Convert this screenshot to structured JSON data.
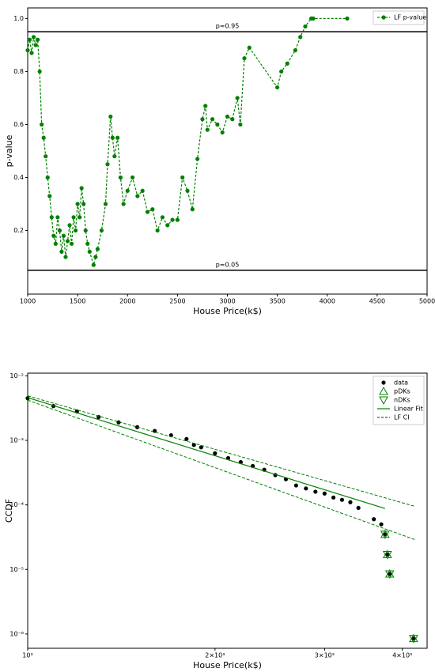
{
  "chart_data": [
    {
      "type": "line",
      "xlabel": "House Price(k$)",
      "ylabel": "p-value",
      "xlim": [
        1000,
        5000
      ],
      "xticks": [
        1000,
        1500,
        2000,
        2500,
        3000,
        3500,
        4000,
        4500,
        5000
      ],
      "ylim": [
        -0.04,
        1.04
      ],
      "yticks": [
        0.2,
        0.4,
        0.6,
        0.8,
        {
          "value": 1,
          "label": "1.0"
        }
      ],
      "legend": "upper right",
      "hlines": [
        {
          "value": 0.95,
          "label": "p=0.95"
        },
        {
          "value": 0.05,
          "label": "p=0.05"
        }
      ],
      "series": [
        {
          "name": "LF p-value",
          "color": "#008000",
          "kind": "line",
          "marker": "o",
          "dashed": true,
          "x": [
            1000,
            1020,
            1040,
            1060,
            1080,
            1100,
            1120,
            1140,
            1160,
            1180,
            1200,
            1220,
            1240,
            1260,
            1280,
            1300,
            1320,
            1340,
            1360,
            1380,
            1400,
            1420,
            1440,
            1460,
            1480,
            1500,
            1520,
            1540,
            1560,
            1580,
            1600,
            1620,
            1660,
            1680,
            1700,
            1740,
            1780,
            1800,
            1830,
            1850,
            1870,
            1900,
            1930,
            1960,
            2000,
            2050,
            2100,
            2150,
            2200,
            2250,
            2300,
            2350,
            2400,
            2450,
            2500,
            2550,
            2600,
            2650,
            2700,
            2750,
            2780,
            2800,
            2850,
            2900,
            2950,
            3000,
            3050,
            3100,
            3130,
            3170,
            3220,
            3500,
            3540,
            3600,
            3680,
            3730,
            3780,
            3840,
            3860,
            4200
          ],
          "values": [
            0.88,
            0.92,
            0.87,
            0.93,
            0.9,
            0.92,
            0.8,
            0.6,
            0.55,
            0.48,
            0.4,
            0.33,
            0.25,
            0.18,
            0.15,
            0.25,
            0.2,
            0.12,
            0.18,
            0.1,
            0.16,
            0.22,
            0.15,
            0.25,
            0.2,
            0.3,
            0.25,
            0.36,
            0.3,
            0.2,
            0.15,
            0.12,
            0.07,
            0.1,
            0.13,
            0.2,
            0.3,
            0.45,
            0.63,
            0.55,
            0.48,
            0.55,
            0.4,
            0.3,
            0.35,
            0.4,
            0.33,
            0.35,
            0.27,
            0.28,
            0.2,
            0.25,
            0.22,
            0.24,
            0.24,
            0.4,
            0.35,
            0.28,
            0.47,
            0.62,
            0.67,
            0.58,
            0.62,
            0.6,
            0.57,
            0.63,
            0.62,
            0.7,
            0.6,
            0.85,
            0.89,
            0.74,
            0.8,
            0.83,
            0.88,
            0.93,
            0.97,
            1,
            1,
            1
          ]
        }
      ]
    },
    {
      "type": "line",
      "xscale": "log",
      "yscale": "log",
      "xlabel": "House Price(k$)",
      "ylabel": "CCDF",
      "xlim": [
        1000,
        4384
      ],
      "xticks": [
        {
          "value": 1000,
          "label": "10³"
        },
        {
          "value": 2000,
          "label": "2×10³"
        },
        {
          "value": 3000,
          "label": "3×10³"
        },
        {
          "value": 4000,
          "label": "4×10³"
        }
      ],
      "ylim": [
        6e-07,
        0.011
      ],
      "yticks": [
        {
          "value": 1e-06,
          "label": "10⁻⁶"
        },
        {
          "value": 1e-05,
          "label": "10⁻⁵"
        },
        {
          "value": 0.0001,
          "label": "10⁻⁴"
        },
        {
          "value": 0.001,
          "label": "10⁻³"
        },
        {
          "value": 0.01,
          "label": "10⁻²"
        }
      ],
      "legend": "upper right",
      "series": [
        {
          "name": "data",
          "color": "#000000",
          "kind": "scatter",
          "marker": "o",
          "x": [
            1000,
            1100,
            1200,
            1300,
            1400,
            1500,
            1600,
            1700,
            1800,
            1850,
            1900,
            2000,
            2100,
            2200,
            2300,
            2400,
            2500,
            2600,
            2700,
            2800,
            2900,
            3000,
            3100,
            3200,
            3300,
            3400,
            3600,
            3700,
            3752,
            3785,
            3818,
            4170
          ],
          "values": [
            0.0045,
            0.0034,
            0.0028,
            0.0023,
            0.0019,
            0.0016,
            0.0014,
            0.0012,
            0.00105,
            0.00085,
            0.00078,
            0.00063,
            0.00053,
            0.00046,
            0.0004,
            0.00035,
            0.00029,
            0.00025,
            0.0002,
            0.00018,
            0.00016,
            0.00015,
            0.00013,
            0.00012,
            0.00011,
            9e-05,
            6e-05,
            5e-05,
            3.5e-05,
            1.7e-05,
            8.5e-06,
            8.5e-07
          ]
        },
        {
          "name": "pDKs",
          "color": "#008000",
          "kind": "scatter",
          "marker": "triangle-up",
          "x": [
            3752,
            3785,
            3818,
            4170
          ],
          "values": [
            3.5e-05,
            1.7e-05,
            8.5e-06,
            8.5e-07
          ]
        },
        {
          "name": "nDKs",
          "color": "#008000",
          "kind": "scatter",
          "marker": "triangle-down",
          "x": [
            3752,
            3785,
            3818,
            4170
          ],
          "values": [
            3.5e-05,
            1.7e-05,
            8.5e-06,
            8.5e-07
          ]
        },
        {
          "name": "Linear Fit",
          "color": "#008000",
          "kind": "line",
          "x": [
            1000,
            3752
          ],
          "values": [
            0.0046,
            8.8e-05
          ]
        },
        {
          "name": "LF CI",
          "color": "#008000",
          "kind": "band",
          "x": [
            1000,
            4190
          ],
          "upper": [
            0.0049,
            9.5e-05
          ],
          "lower": [
            0.0042,
            2.9e-05
          ]
        }
      ]
    }
  ]
}
